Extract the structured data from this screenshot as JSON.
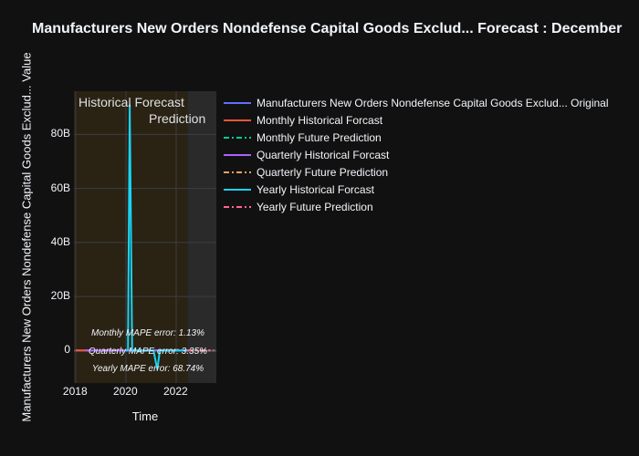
{
  "chart_data": {
    "type": "line",
    "title": "Manufacturers New Orders Nondefense Capital Goods Exclud... Forecast : December",
    "xlabel": "Time",
    "ylabel": "Manufacturers New Orders Nondefense Capital Goods Exclud... Value",
    "xlim": [
      2017.93,
      2023.6
    ],
    "ylim": [
      -12,
      96
    ],
    "x_ticks": [
      {
        "v": 2018,
        "label": "2018"
      },
      {
        "v": 2020,
        "label": "2020"
      },
      {
        "v": 2022,
        "label": "2022"
      }
    ],
    "y_ticks": [
      {
        "v": 0,
        "label": "0"
      },
      {
        "v": 20,
        "label": "20B"
      },
      {
        "v": 40,
        "label": "40B"
      },
      {
        "v": 60,
        "label": "60B"
      },
      {
        "v": 80,
        "label": "80B"
      }
    ],
    "grid": true,
    "regions": [
      {
        "label": "Historical Forecast",
        "from": 2017.93,
        "to": 2022.45,
        "color": "#2a2213"
      },
      {
        "label": "Prediction",
        "from": 2022.45,
        "to": 2023.6,
        "color": "#2a2a2a"
      }
    ],
    "series": [
      {
        "name": "Manufacturers New Orders Nondefense Capital Goods Exclud... Original",
        "color": "#636efa",
        "dash": "solid",
        "x": [
          2018,
          2022.45
        ],
        "y": [
          0.07,
          0.07
        ]
      },
      {
        "name": "Monthly Historical Forcast",
        "color": "#EF553B",
        "dash": "solid",
        "x": [
          2018,
          2018.5
        ],
        "y": [
          0.07,
          0.07
        ]
      },
      {
        "name": "Monthly Future Prediction",
        "color": "#00cc96",
        "dash": "dashdot",
        "x": [
          2022.45,
          2023.5
        ],
        "y": [
          0.07,
          0.07
        ]
      },
      {
        "name": "Quarterly Historical Forcast",
        "color": "#ab63fa",
        "dash": "solid",
        "x": [
          2018.4,
          2022.45
        ],
        "y": [
          0.07,
          0.07
        ]
      },
      {
        "name": "Quarterly Future Prediction",
        "color": "#FFA15A",
        "dash": "dashdot",
        "x": [
          2022.45,
          2023.5
        ],
        "y": [
          0.07,
          0.07
        ]
      },
      {
        "name": "Yearly Historical Forcast",
        "color": "#19d3f3",
        "dash": "solid",
        "x": [
          2020.0,
          2020.08,
          2020.15,
          2020.25,
          2020.35,
          2021.1,
          2021.25,
          2021.35,
          2022.45
        ],
        "y": [
          0,
          0,
          91,
          0,
          0,
          0,
          -7,
          0,
          0
        ]
      },
      {
        "name": "Yearly Future Prediction",
        "color": "#FF6692",
        "dash": "dashdot",
        "x": [
          2022.45,
          2023.5
        ],
        "y": [
          0.07,
          0.07
        ]
      }
    ],
    "annotations": [
      "Monthly MAPE error: 1.13%",
      "Quarterly MAPE error: 3.35%",
      "Yearly MAPE error: 68.74%"
    ]
  }
}
